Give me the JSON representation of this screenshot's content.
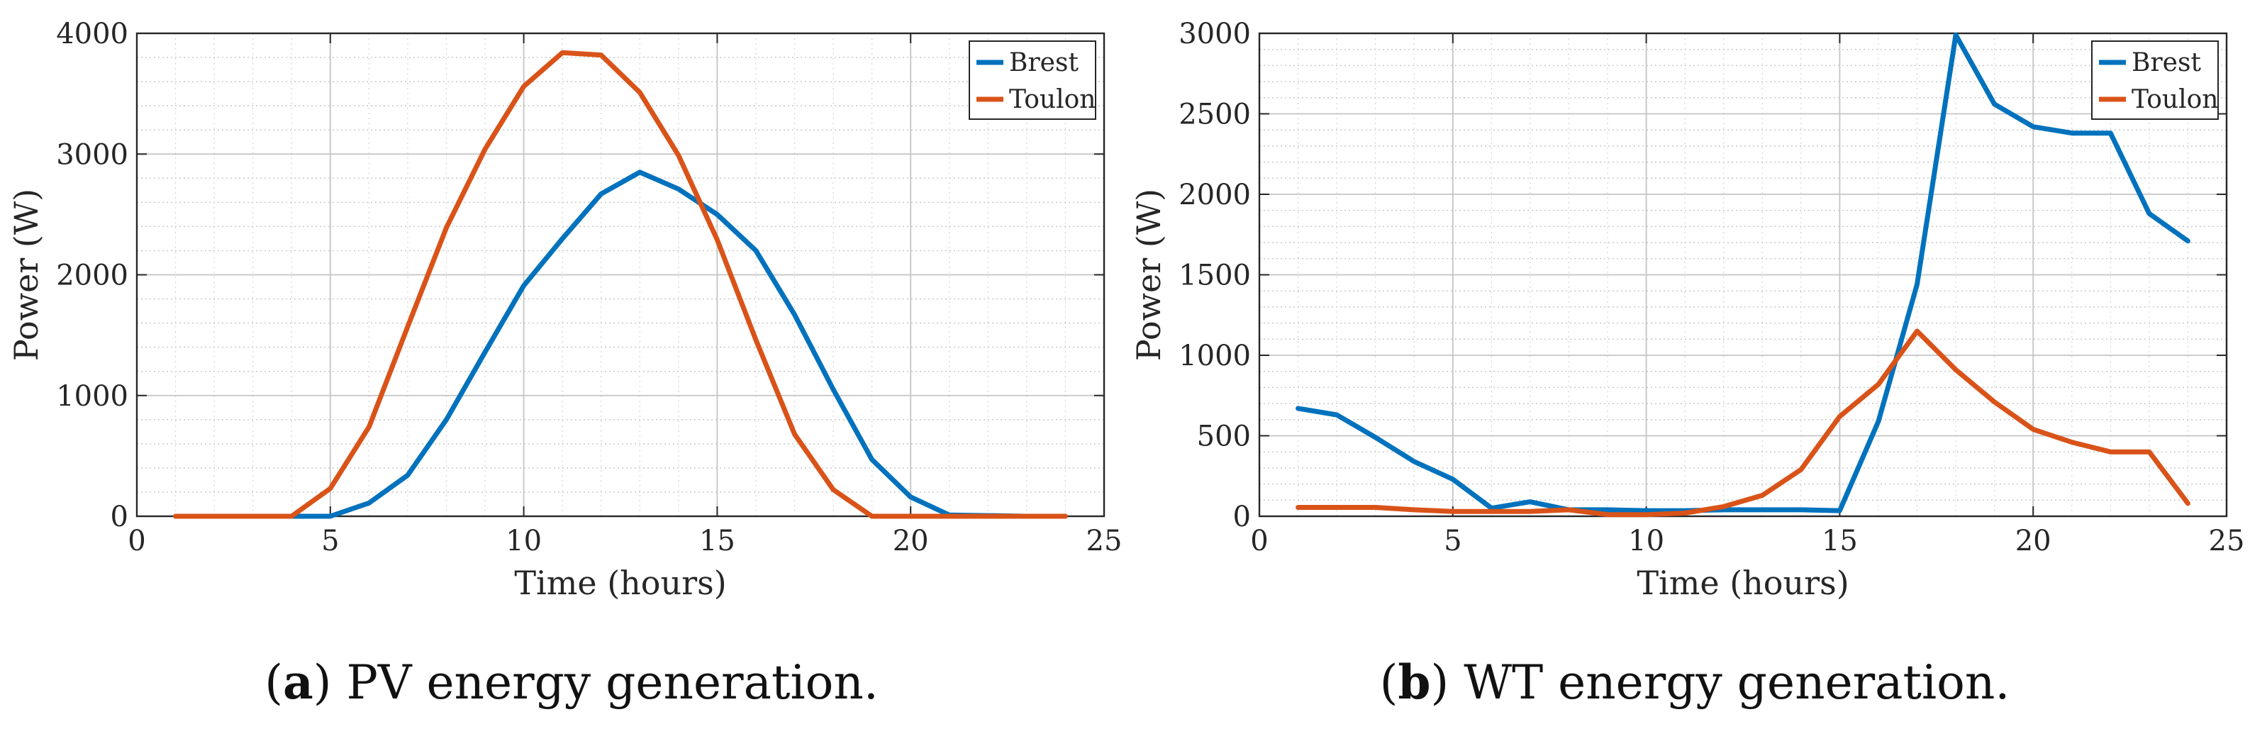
{
  "chart_data": [
    {
      "type": "line",
      "id": "pv",
      "caption_letter": "a",
      "caption_text": "PV energy generation.",
      "xlabel": "Time (hours)",
      "ylabel": "Power (W)",
      "xlim": [
        0,
        25
      ],
      "ylim": [
        0,
        4000
      ],
      "xticks": [
        0,
        5,
        10,
        15,
        20,
        25
      ],
      "yticks": [
        0,
        1000,
        2000,
        3000,
        4000
      ],
      "y_minor_step": 200,
      "x_minor_step": 1,
      "grid": true,
      "legend_position": "top-right",
      "x": [
        1,
        2,
        3,
        4,
        5,
        6,
        7,
        8,
        9,
        10,
        11,
        12,
        13,
        14,
        15,
        16,
        17,
        18,
        19,
        20,
        21,
        22,
        23,
        24
      ],
      "series": [
        {
          "name": "Brest",
          "color": "#0072BD",
          "values": [
            0,
            0,
            0,
            0,
            0,
            110,
            340,
            800,
            1360,
            1910,
            2300,
            2670,
            2850,
            2710,
            2500,
            2200,
            1670,
            1050,
            470,
            160,
            10,
            5,
            0,
            0
          ]
        },
        {
          "name": "Toulon",
          "color": "#D95319",
          "values": [
            0,
            0,
            0,
            0,
            230,
            740,
            1570,
            2390,
            3040,
            3560,
            3840,
            3820,
            3510,
            2990,
            2290,
            1460,
            680,
            220,
            0,
            0,
            0,
            0,
            0,
            0
          ]
        }
      ]
    },
    {
      "type": "line",
      "id": "wt",
      "caption_letter": "b",
      "caption_text": "WT energy generation.",
      "xlabel": "Time (hours)",
      "ylabel": "Power (W)",
      "xlim": [
        0,
        25
      ],
      "ylim": [
        0,
        3000
      ],
      "xticks": [
        0,
        5,
        10,
        15,
        20,
        25
      ],
      "yticks": [
        0,
        500,
        1000,
        1500,
        2000,
        2500,
        3000
      ],
      "y_minor_step": 100,
      "x_minor_step": 1,
      "grid": true,
      "legend_position": "top-right",
      "x": [
        1,
        2,
        3,
        4,
        5,
        6,
        7,
        8,
        9,
        10,
        11,
        12,
        13,
        14,
        15,
        16,
        17,
        18,
        19,
        20,
        21,
        22,
        23,
        24
      ],
      "series": [
        {
          "name": "Brest",
          "color": "#0072BD",
          "values": [
            670,
            630,
            490,
            340,
            230,
            50,
            90,
            40,
            40,
            35,
            35,
            40,
            40,
            40,
            35,
            590,
            1440,
            2990,
            2560,
            2420,
            2380,
            2380,
            1880,
            1710
          ]
        },
        {
          "name": "Toulon",
          "color": "#D95319",
          "values": [
            55,
            55,
            55,
            40,
            30,
            30,
            30,
            40,
            10,
            10,
            20,
            60,
            130,
            290,
            620,
            820,
            1150,
            910,
            710,
            540,
            460,
            400,
            400,
            80
          ]
        }
      ]
    }
  ]
}
